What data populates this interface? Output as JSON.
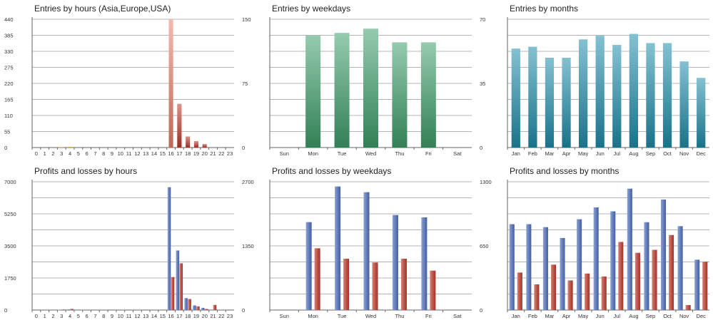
{
  "colors": {
    "grid": "#b4b4b4",
    "axis": "#666666",
    "red_bar": "#c0392b",
    "orange_bar": "#f5b041",
    "green_bar": "#3fa06b",
    "teal_bar": "#1f8fac",
    "blue_bar": "#4c6fbf",
    "highlight_bar": "#e8826e"
  },
  "chart_data": [
    {
      "id": "entries-hours",
      "type": "bar",
      "title": "Entries by hours (Asia,Europe,USA)",
      "categories": [
        "0",
        "1",
        "2",
        "3",
        "4",
        "5",
        "6",
        "7",
        "8",
        "9",
        "10",
        "11",
        "12",
        "13",
        "14",
        "15",
        "16",
        "17",
        "18",
        "19",
        "20",
        "21",
        "22",
        "23"
      ],
      "yticks": [
        "0",
        "55",
        "110",
        "165",
        "220",
        "275",
        "330",
        "385",
        "440"
      ],
      "ylim": [
        0,
        440
      ],
      "grid": true,
      "series": [
        {
          "color": "#c0392b",
          "values": [
            0,
            0,
            0,
            2,
            3,
            0,
            0,
            0,
            0,
            0,
            0,
            0,
            0,
            0,
            0,
            0,
            440,
            150,
            38,
            22,
            12,
            0,
            0,
            0
          ],
          "point_colors": {
            "3": "#f5b041",
            "4": "#f5b041",
            "16": "#e8826e"
          }
        }
      ]
    },
    {
      "id": "entries-weekdays",
      "type": "bar",
      "title": "Entries by weekdays",
      "categories": [
        "Sun",
        "Mon",
        "Tue",
        "Wed",
        "Thu",
        "Fri",
        "Sat"
      ],
      "yticks": [
        "0",
        "75",
        "150"
      ],
      "ylim": [
        0,
        150
      ],
      "grid": true,
      "series": [
        {
          "color": "#3fa06b",
          "values": [
            0,
            131,
            134,
            139,
            123,
            123,
            0
          ]
        }
      ]
    },
    {
      "id": "entries-months",
      "type": "bar",
      "title": "Entries by months",
      "categories": [
        "Jan",
        "Feb",
        "Mar",
        "Apr",
        "May",
        "Jun",
        "Jul",
        "Aug",
        "Sep",
        "Oct",
        "Nov",
        "Dec"
      ],
      "yticks": [
        "0",
        "35",
        "70"
      ],
      "ylim": [
        0,
        70
      ],
      "grid": true,
      "series": [
        {
          "color": "#1f8fac",
          "values": [
            54,
            55,
            49,
            49,
            59,
            61,
            56,
            62,
            57,
            57,
            47,
            38
          ]
        }
      ]
    },
    {
      "id": "pl-hours",
      "type": "bar",
      "title": "Profits and losses by hours",
      "categories": [
        "0",
        "1",
        "2",
        "3",
        "4",
        "5",
        "6",
        "7",
        "8",
        "9",
        "10",
        "11",
        "12",
        "13",
        "14",
        "15",
        "16",
        "17",
        "18",
        "19",
        "20",
        "21",
        "22",
        "23"
      ],
      "yticks": [
        "0",
        "1750",
        "3500",
        "5250",
        "7000"
      ],
      "ylim": [
        0,
        7000
      ],
      "grid": true,
      "series": [
        {
          "color": "#4c6fbf",
          "values": [
            0,
            0,
            0,
            20,
            30,
            0,
            0,
            0,
            0,
            0,
            0,
            0,
            0,
            0,
            0,
            0,
            6700,
            3250,
            650,
            250,
            120,
            0,
            0,
            0
          ]
        },
        {
          "color": "#c0392b",
          "values": [
            0,
            0,
            0,
            30,
            60,
            0,
            0,
            0,
            0,
            0,
            0,
            0,
            0,
            0,
            0,
            0,
            1800,
            2550,
            600,
            200,
            60,
            280,
            0,
            0
          ]
        }
      ]
    },
    {
      "id": "pl-weekdays",
      "type": "bar",
      "title": "Profits and losses by weekdays",
      "categories": [
        "Sun",
        "Mon",
        "Tue",
        "Wed",
        "Thu",
        "Fri",
        "Sat"
      ],
      "yticks": [
        "0",
        "1350",
        "2700"
      ],
      "ylim": [
        0,
        2700
      ],
      "grid": true,
      "series": [
        {
          "color": "#4c6fbf",
          "values": [
            0,
            1850,
            2600,
            2480,
            2000,
            1950,
            0
          ]
        },
        {
          "color": "#c0392b",
          "values": [
            0,
            1300,
            1080,
            1000,
            1080,
            830,
            0
          ]
        }
      ]
    },
    {
      "id": "pl-months",
      "type": "bar",
      "title": "Profits and losses by months",
      "categories": [
        "Jan",
        "Feb",
        "Mar",
        "Apr",
        "May",
        "Jun",
        "Jul",
        "Aug",
        "Sep",
        "Oct",
        "Nov",
        "Dec"
      ],
      "yticks": [
        "0",
        "650",
        "1300"
      ],
      "ylim": [
        0,
        1300
      ],
      "grid": true,
      "series": [
        {
          "color": "#4c6fbf",
          "values": [
            870,
            870,
            840,
            730,
            920,
            1040,
            1000,
            1230,
            890,
            1120,
            850,
            510
          ]
        },
        {
          "color": "#c0392b",
          "values": [
            380,
            260,
            460,
            300,
            370,
            340,
            690,
            580,
            610,
            760,
            50,
            490
          ]
        }
      ]
    }
  ]
}
